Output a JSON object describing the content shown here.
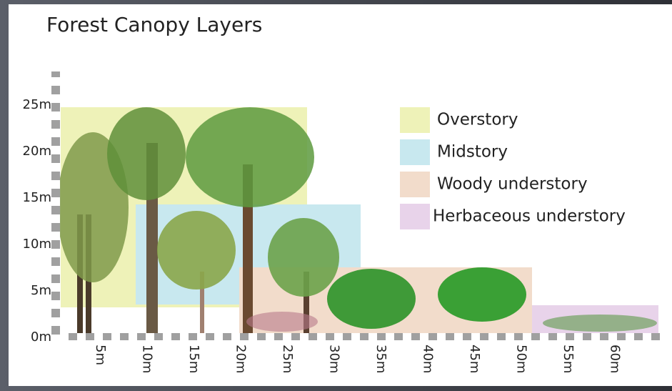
{
  "title": "Forest Canopy Layers",
  "y_axis": {
    "labels": [
      "0m",
      "5m",
      "10m",
      "15m",
      "20m",
      "25m"
    ]
  },
  "x_axis": {
    "labels": [
      "5m",
      "10m",
      "15m",
      "20m",
      "25m",
      "30m",
      "35m",
      "40m",
      "45m",
      "50m",
      "55m",
      "60m"
    ]
  },
  "legend": [
    {
      "label": "Overstory"
    },
    {
      "label": "Midstory"
    },
    {
      "label": "Woody understory"
    },
    {
      "label": "Herbaceous understory"
    }
  ]
}
